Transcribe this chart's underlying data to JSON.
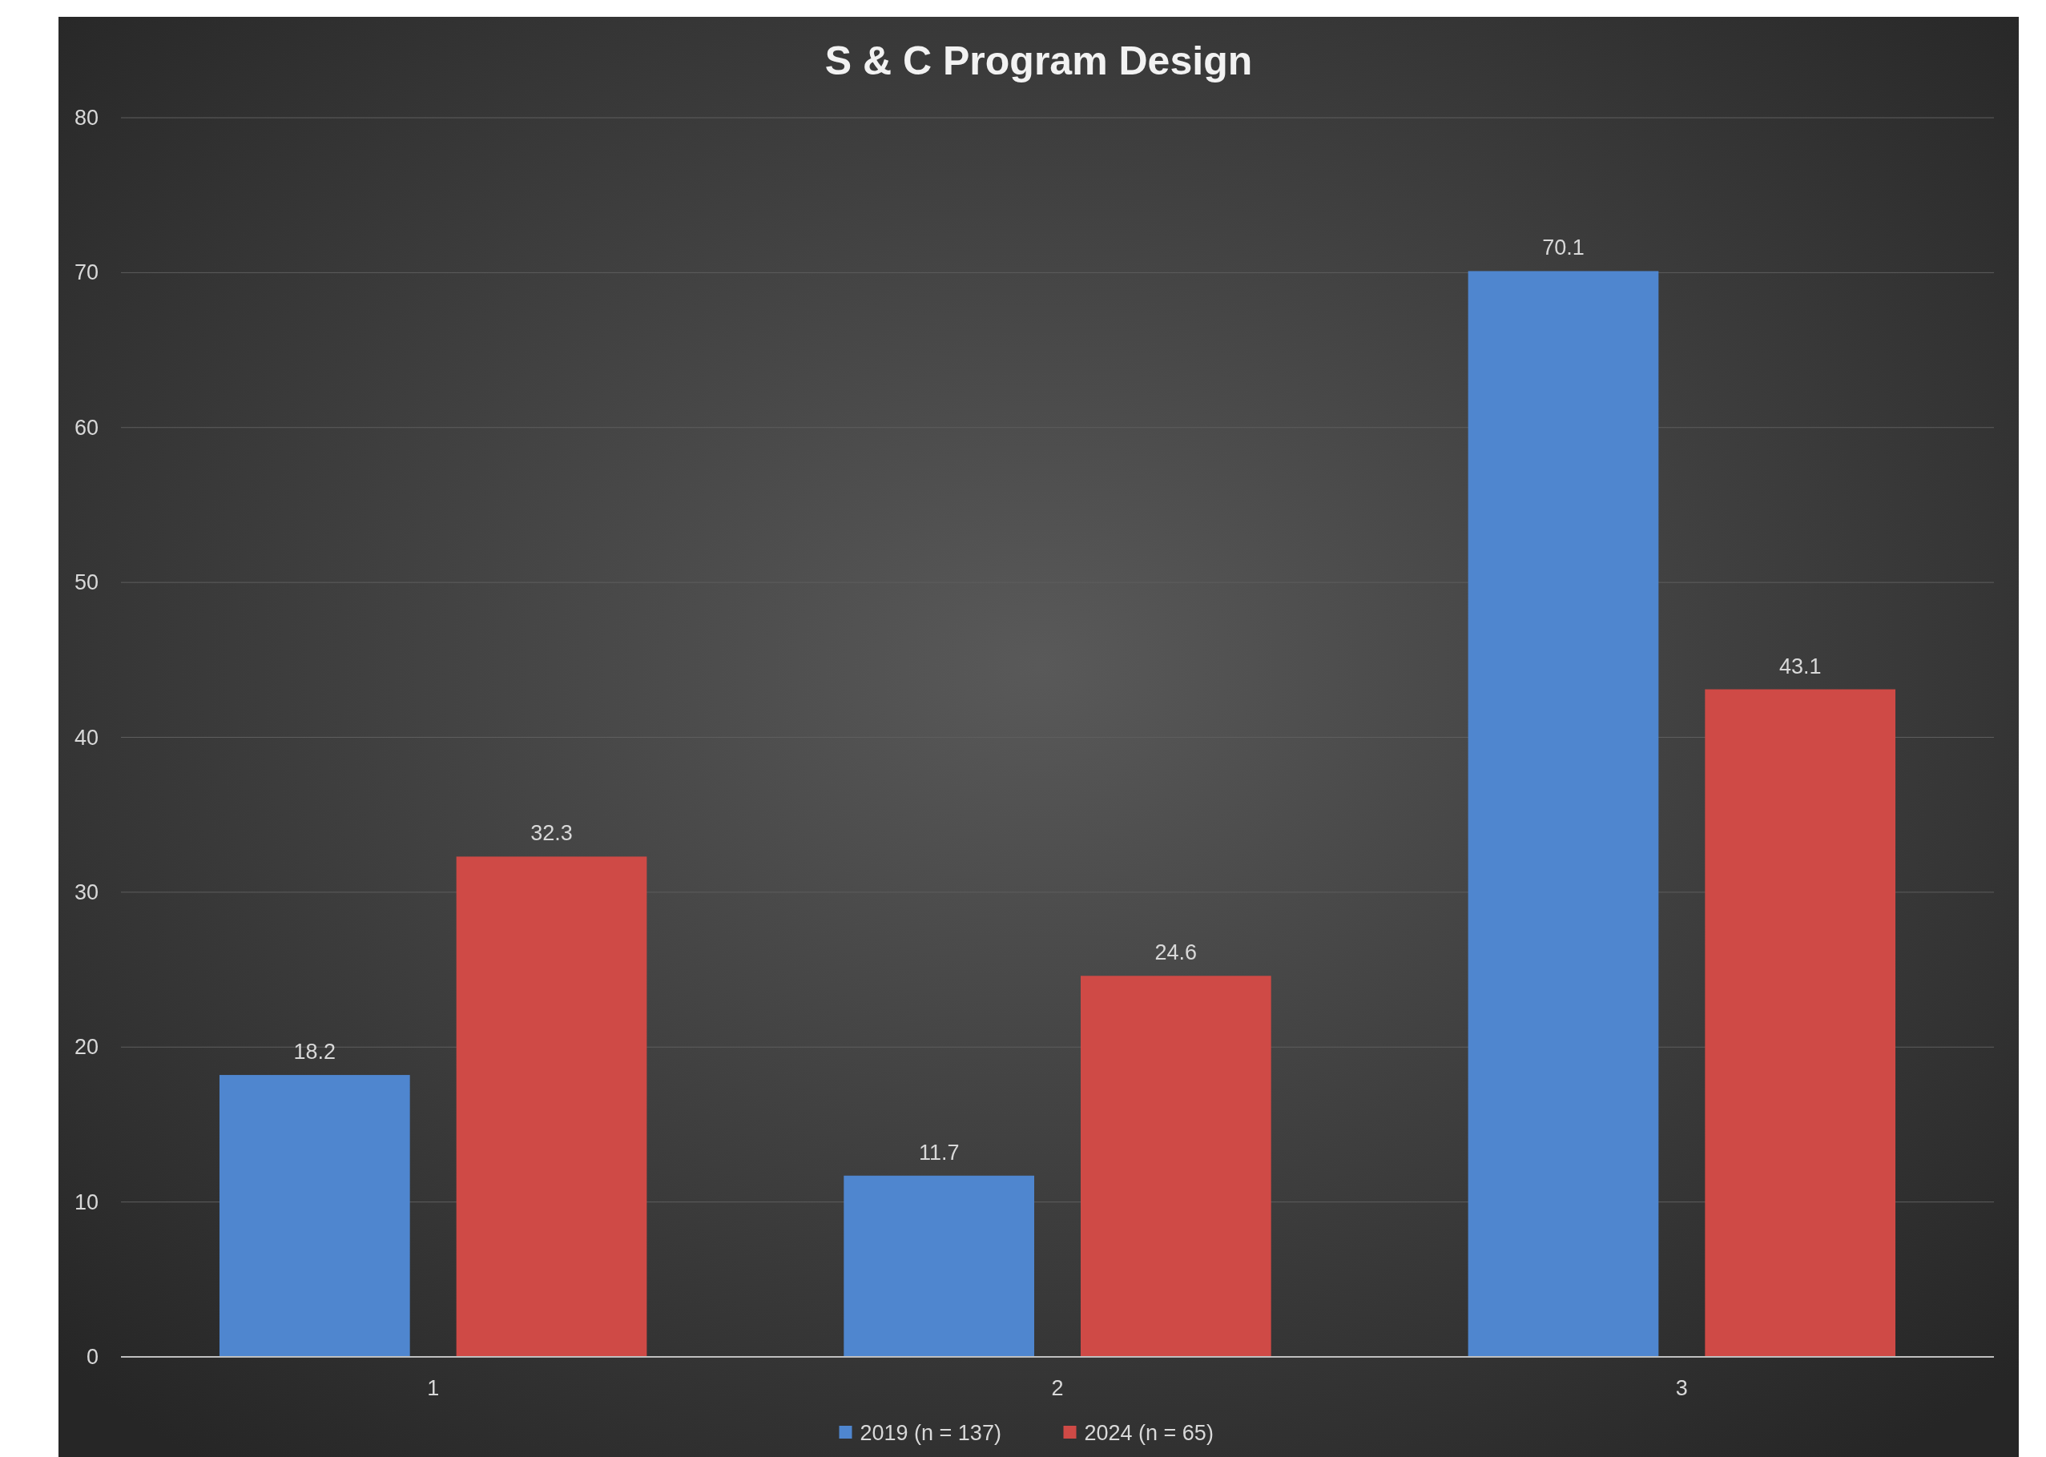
{
  "chart_data": {
    "type": "bar",
    "title": "S & C Program Design",
    "categories": [
      "1",
      "2",
      "3"
    ],
    "series": [
      {
        "name": "2019 (n = 137)",
        "color": "#4f86cf",
        "values": [
          18.2,
          11.7,
          70.1
        ]
      },
      {
        "name": "2024 (n = 65)",
        "color": "#cf4a46",
        "values": [
          32.3,
          24.6,
          43.1
        ]
      }
    ],
    "ylim": [
      0,
      80
    ],
    "yticks": [
      0,
      10,
      20,
      30,
      40,
      50,
      60,
      70,
      80
    ],
    "grid": "y",
    "legend": "bottom",
    "data_labels": true
  }
}
